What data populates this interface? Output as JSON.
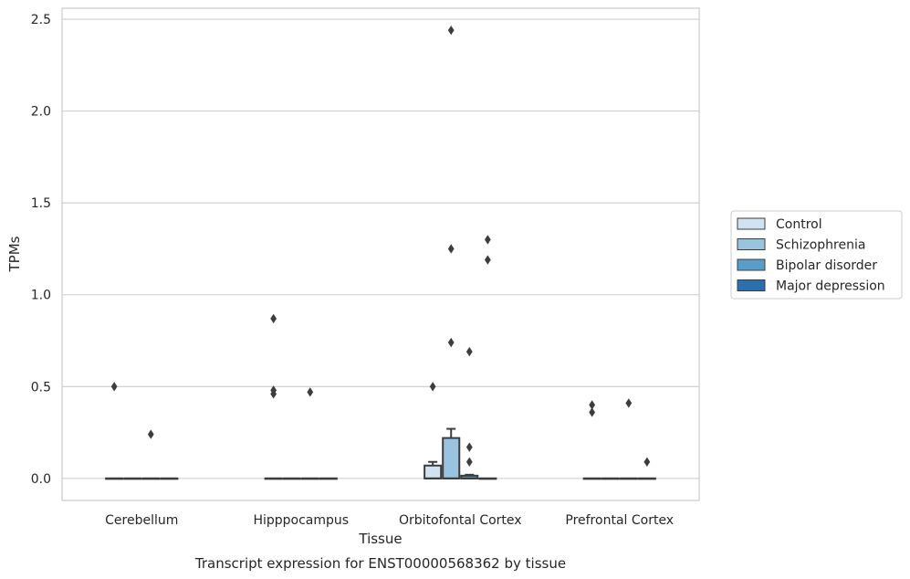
{
  "chart_data": {
    "type": "box",
    "caption": "Transcript expression for ENST00000568362 by tissue",
    "xlabel": "Tissue",
    "ylabel": "TPMs",
    "ylim": [
      -0.12,
      2.56
    ],
    "yticks": [
      0.0,
      0.5,
      1.0,
      1.5,
      2.0,
      2.5
    ],
    "ytick_labels": [
      "0.0",
      "0.5",
      "1.0",
      "1.5",
      "2.0",
      "2.5"
    ],
    "grid": true,
    "legend_position": "right",
    "categories": [
      "Cerebellum",
      "Hipppocampus",
      "Orbitofontal Cortex",
      "Prefrontal Cortex"
    ],
    "series": [
      {
        "name": "Control",
        "color": "#d1e2f2",
        "boxes": [
          {
            "q1": 0,
            "median": 0,
            "q3": 0,
            "whisker_low": 0,
            "whisker_high": 0,
            "outliers": [
              0.5
            ]
          },
          {
            "q1": 0,
            "median": 0,
            "q3": 0,
            "whisker_low": 0,
            "whisker_high": 0,
            "outliers": [
              0.87,
              0.48,
              0.46
            ]
          },
          {
            "q1": 0,
            "median": 0,
            "q3": 0.07,
            "whisker_low": 0,
            "whisker_high": 0.09,
            "outliers": [
              0.5
            ]
          },
          {
            "q1": 0,
            "median": 0,
            "q3": 0,
            "whisker_low": 0,
            "whisker_high": 0,
            "outliers": [
              0.4,
              0.36
            ]
          }
        ]
      },
      {
        "name": "Schizophrenia",
        "color": "#9ac3df",
        "boxes": [
          {
            "q1": 0,
            "median": 0,
            "q3": 0,
            "whisker_low": 0,
            "whisker_high": 0,
            "outliers": []
          },
          {
            "q1": 0,
            "median": 0,
            "q3": 0,
            "whisker_low": 0,
            "whisker_high": 0,
            "outliers": []
          },
          {
            "q1": 0,
            "median": 0,
            "q3": 0.22,
            "whisker_low": 0,
            "whisker_high": 0.27,
            "outliers": [
              2.44,
              1.25,
              0.74
            ]
          },
          {
            "q1": 0,
            "median": 0,
            "q3": 0,
            "whisker_low": 0,
            "whisker_high": 0,
            "outliers": []
          }
        ]
      },
      {
        "name": "Bipolar disorder",
        "color": "#5a9dcb",
        "boxes": [
          {
            "q1": 0,
            "median": 0,
            "q3": 0,
            "whisker_low": 0,
            "whisker_high": 0,
            "outliers": [
              0.24
            ]
          },
          {
            "q1": 0,
            "median": 0,
            "q3": 0,
            "whisker_low": 0,
            "whisker_high": 0,
            "outliers": [
              0.47
            ]
          },
          {
            "q1": 0,
            "median": 0,
            "q3": 0.015,
            "whisker_low": 0,
            "whisker_high": 0.02,
            "outliers": [
              0.69,
              0.17,
              0.09
            ]
          },
          {
            "q1": 0,
            "median": 0,
            "q3": 0,
            "whisker_low": 0,
            "whisker_high": 0,
            "outliers": [
              0.41
            ]
          }
        ]
      },
      {
        "name": "Major depression",
        "color": "#2c6fae",
        "boxes": [
          {
            "q1": 0,
            "median": 0,
            "q3": 0,
            "whisker_low": 0,
            "whisker_high": 0,
            "outliers": []
          },
          {
            "q1": 0,
            "median": 0,
            "q3": 0,
            "whisker_low": 0,
            "whisker_high": 0,
            "outliers": []
          },
          {
            "q1": 0,
            "median": 0,
            "q3": 0,
            "whisker_low": 0,
            "whisker_high": 0,
            "outliers": [
              1.3,
              1.19
            ]
          },
          {
            "q1": 0,
            "median": 0,
            "q3": 0,
            "whisker_low": 0,
            "whisker_high": 0,
            "outliers": [
              0.09
            ]
          }
        ]
      }
    ]
  }
}
